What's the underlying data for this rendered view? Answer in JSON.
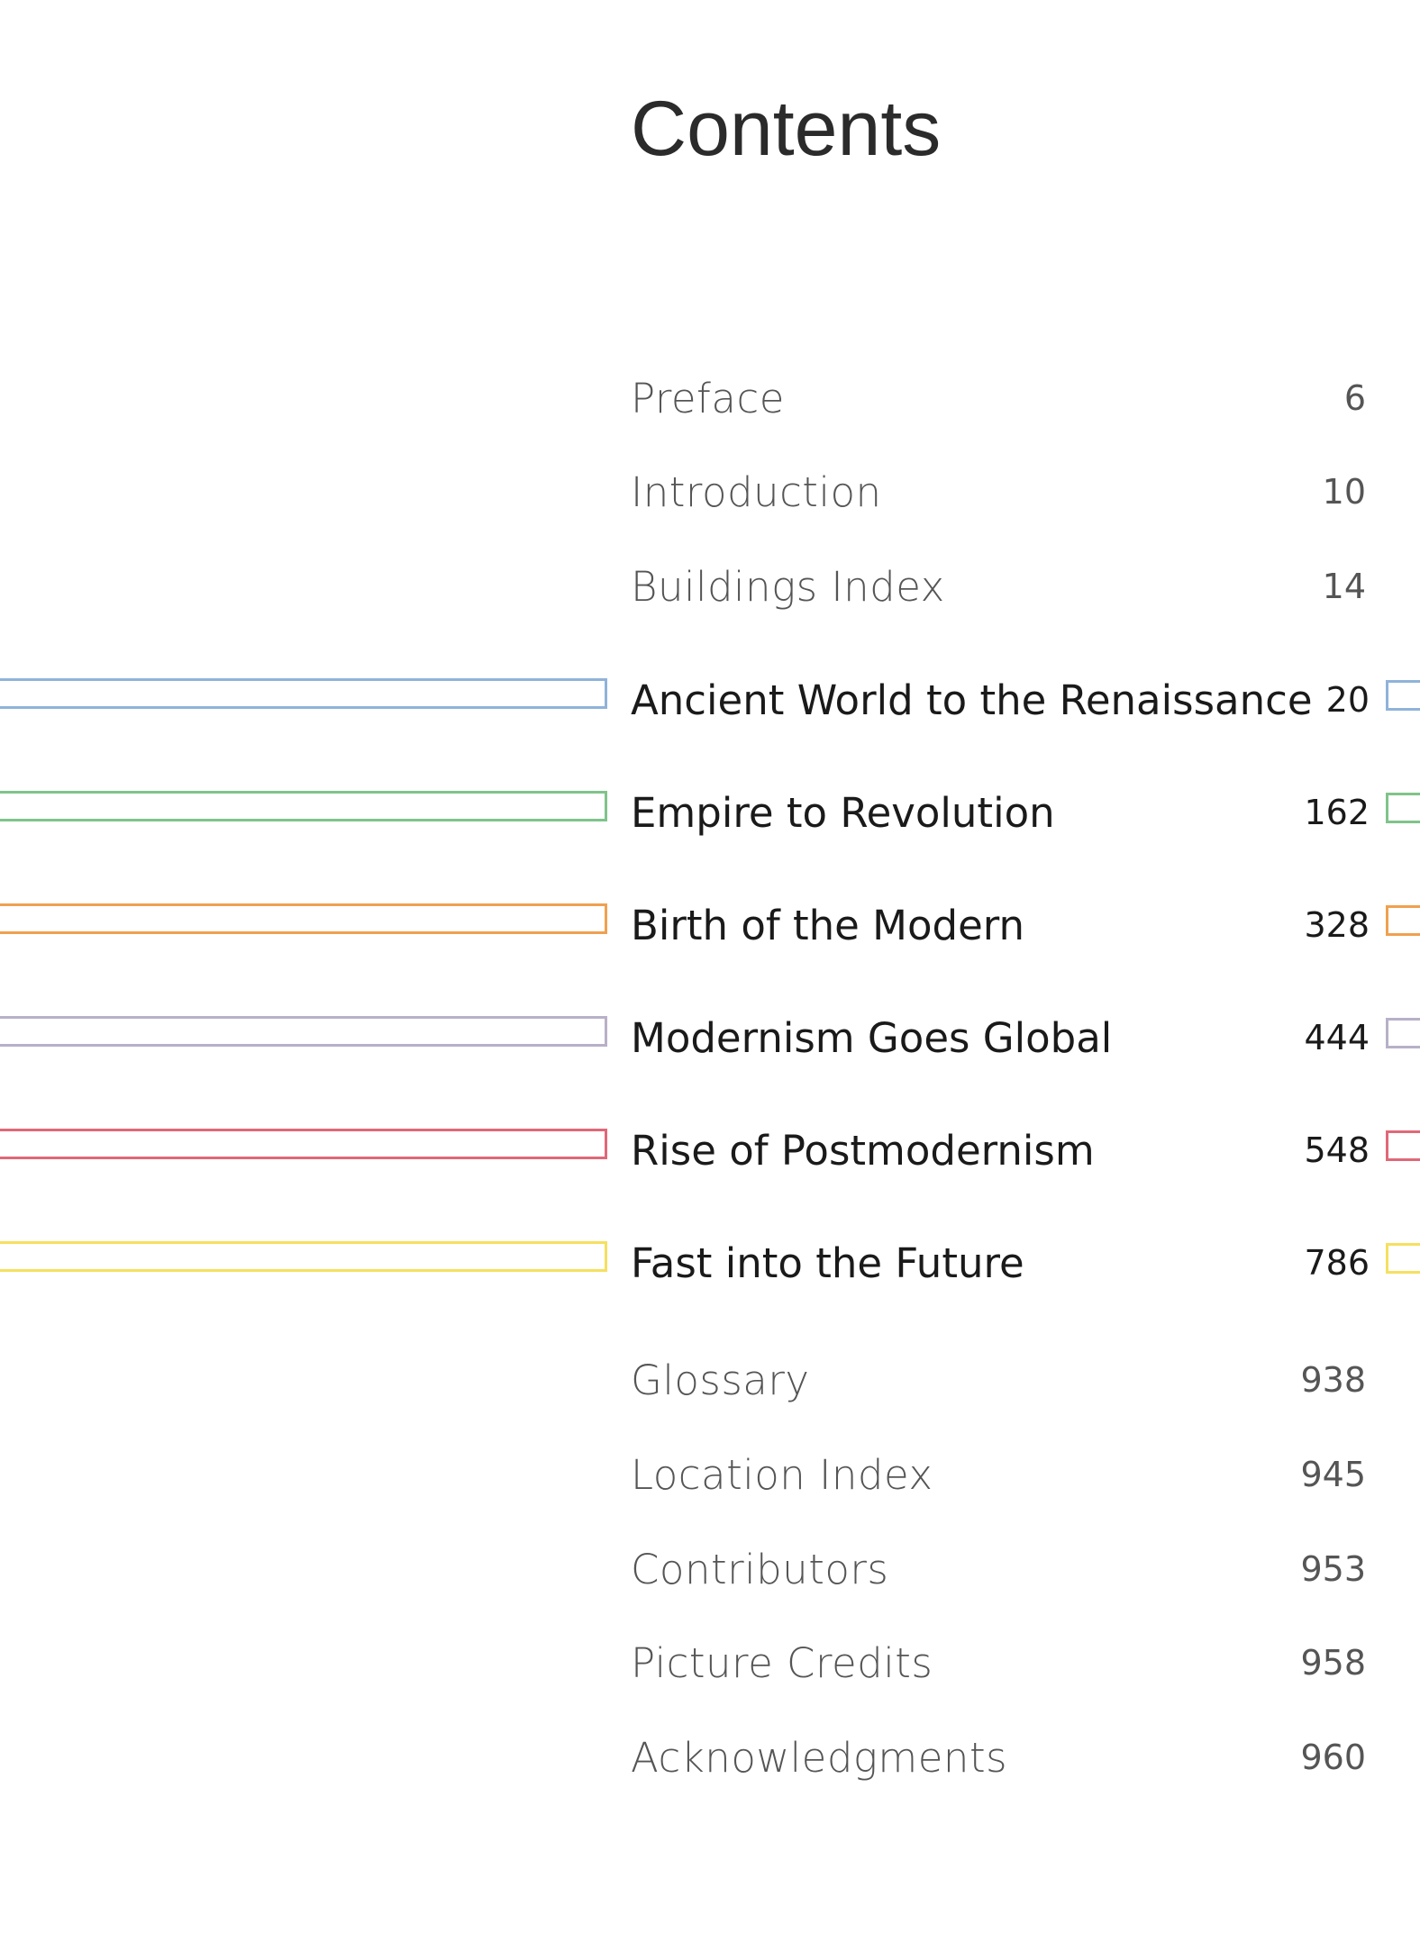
{
  "title": "Contents",
  "entries": [
    {
      "title": "Preface",
      "page": "6",
      "major": false
    },
    {
      "title": "Introduction",
      "page": "10",
      "major": false
    },
    {
      "title": "Buildings Index",
      "page": "14",
      "major": false
    },
    {
      "title": "Ancient World to the Renaissance",
      "page": "20",
      "major": true,
      "color": "#8fb3d9"
    },
    {
      "title": "Empire to Revolution",
      "page": "162",
      "major": true,
      "color": "#7fc48a"
    },
    {
      "title": "Birth of the Modern",
      "page": "328",
      "major": true,
      "color": "#f0a050"
    },
    {
      "title": "Modernism Goes Global",
      "page": "444",
      "major": true,
      "color": "#b8b0c8"
    },
    {
      "title": "Rise of Postmodernism",
      "page": "548",
      "major": true,
      "color": "#e06878"
    },
    {
      "title": "Fast into the Future",
      "page": "786",
      "major": true,
      "color": "#f5e060"
    },
    {
      "title": "Glossary",
      "page": "938",
      "major": false
    },
    {
      "title": "Location Index",
      "page": "945",
      "major": false
    },
    {
      "title": "Contributors",
      "page": "953",
      "major": false
    },
    {
      "title": "Picture Credits",
      "page": "958",
      "major": false
    },
    {
      "title": "Acknowledgments",
      "page": "960",
      "major": false
    }
  ]
}
